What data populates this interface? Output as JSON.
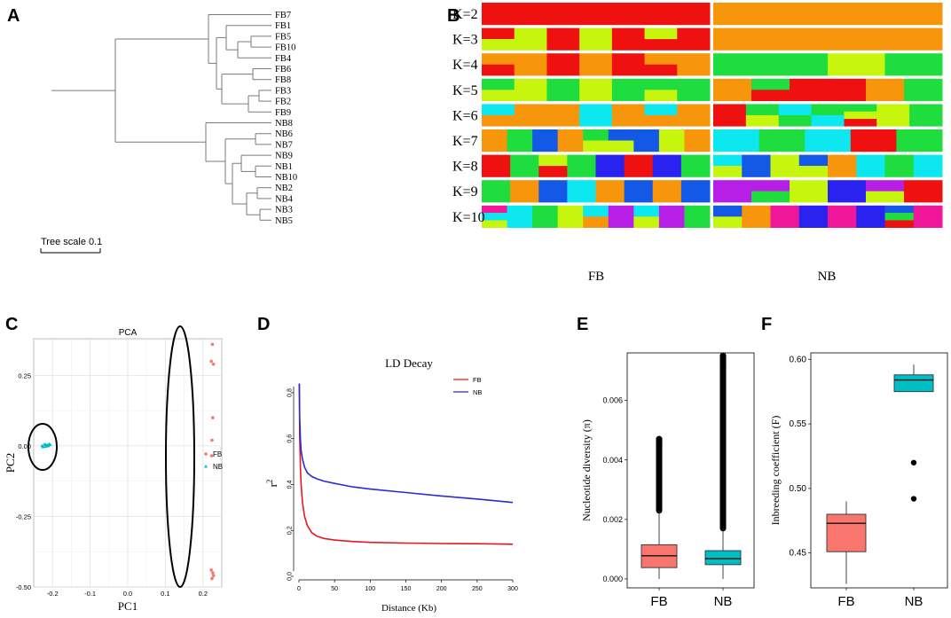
{
  "panels": {
    "A": {
      "letter": "A",
      "scale_label": "Tree scale 0.1",
      "leaves": [
        "FB7",
        "FB1",
        "FB5",
        "FB10",
        "FB4",
        "FB6",
        "FB8",
        "FB3",
        "FB2",
        "FB9",
        "NB8",
        "NB6",
        "NB7",
        "NB9",
        "NB1",
        "NB10",
        "NB2",
        "NB4",
        "NB3",
        "NB5"
      ]
    },
    "B": {
      "letter": "B",
      "k_labels": [
        "K=2",
        "K=3",
        "K=4",
        "K=5",
        "K=6",
        "K=7",
        "K=8",
        "K=9",
        "K=10"
      ],
      "group_labels": [
        "FB",
        "NB"
      ]
    },
    "C": {
      "letter": "C"
    },
    "D": {
      "letter": "D"
    },
    "E": {
      "letter": "E"
    },
    "F": {
      "letter": "F"
    }
  },
  "colors": {
    "red": "#ef1010",
    "orange": "#f7960a",
    "lime": "#c6f50e",
    "green": "#1fdc3f",
    "cyan": "#0de8f0",
    "blue": "#1459e6",
    "navy": "#2a22ee",
    "purple": "#b81fe6",
    "magenta": "#f0169a",
    "box_fb": "#f8766d",
    "box_nb": "#00bfc4",
    "ld_fb": "#e8171b",
    "ld_nb": "#2b2bd6"
  },
  "structure_rows": [
    {
      "fb": [
        [
          "red"
        ]
      ],
      "nb": [
        [
          "orange"
        ]
      ]
    },
    {
      "fb": [
        [
          "red",
          "lime"
        ],
        [
          "lime"
        ],
        [
          "red"
        ],
        [
          "lime"
        ],
        [
          "red"
        ],
        [
          "lime",
          "red"
        ],
        [
          "red"
        ]
      ],
      "nb": [
        [
          "orange"
        ]
      ]
    },
    {
      "fb": [
        [
          "orange",
          "red"
        ],
        [
          "orange"
        ],
        [
          "red"
        ],
        [
          "orange"
        ],
        [
          "red"
        ],
        [
          "orange",
          "red"
        ],
        [
          "orange"
        ]
      ],
      "nb": [
        [
          "green"
        ],
        [
          "green"
        ],
        [
          "lime"
        ],
        [
          "green"
        ]
      ]
    },
    {
      "fb": [
        [
          "green",
          "lime"
        ],
        [
          "lime"
        ],
        [
          "green"
        ],
        [
          "lime"
        ],
        [
          "green"
        ],
        [
          "green",
          "lime"
        ],
        [
          "green"
        ]
      ],
      "nb": [
        [
          "orange"
        ],
        [
          "green",
          "red"
        ],
        [
          "red"
        ],
        [
          "red"
        ],
        [
          "orange"
        ],
        [
          "green"
        ]
      ]
    },
    {
      "fb": [
        [
          "cyan",
          "orange"
        ],
        [
          "orange"
        ],
        [
          "orange"
        ],
        [
          "cyan"
        ],
        [
          "orange"
        ],
        [
          "cyan",
          "orange"
        ],
        [
          "orange"
        ]
      ],
      "nb": [
        [
          "red"
        ],
        [
          "green",
          "lime"
        ],
        [
          "cyan",
          "green"
        ],
        [
          "green",
          "cyan"
        ],
        [
          "green",
          "lime",
          "red"
        ],
        [
          "lime"
        ],
        [
          "green"
        ]
      ]
    },
    {
      "fb": [
        [
          "orange"
        ],
        [
          "green"
        ],
        [
          "blue"
        ],
        [
          "orange"
        ],
        [
          "green",
          "lime"
        ],
        [
          "blue",
          "lime"
        ],
        [
          "blue"
        ],
        [
          "lime"
        ],
        [
          "orange"
        ]
      ],
      "nb": [
        [
          "cyan"
        ],
        [
          "green"
        ],
        [
          "cyan"
        ],
        [
          "red"
        ],
        [
          "green"
        ]
      ]
    },
    {
      "fb": [
        [
          "red"
        ],
        [
          "green"
        ],
        [
          "lime",
          "red"
        ],
        [
          "green"
        ],
        [
          "navy"
        ],
        [
          "red"
        ],
        [
          "navy"
        ],
        [
          "green"
        ]
      ],
      "nb": [
        [
          "cyan",
          "lime"
        ],
        [
          "blue"
        ],
        [
          "lime"
        ],
        [
          "blue",
          "lime"
        ],
        [
          "orange"
        ],
        [
          "cyan"
        ],
        [
          "green"
        ],
        [
          "cyan"
        ]
      ]
    },
    {
      "fb": [
        [
          "green"
        ],
        [
          "orange"
        ],
        [
          "blue"
        ],
        [
          "cyan"
        ],
        [
          "orange"
        ],
        [
          "blue"
        ],
        [
          "orange"
        ],
        [
          "blue"
        ]
      ],
      "nb": [
        [
          "purple"
        ],
        [
          "purple",
          "green"
        ],
        [
          "lime"
        ],
        [
          "navy"
        ],
        [
          "purple",
          "lime"
        ],
        [
          "red"
        ]
      ]
    },
    {
      "fb": [
        [
          "magenta",
          "cyan",
          "lime"
        ],
        [
          "cyan"
        ],
        [
          "green"
        ],
        [
          "lime"
        ],
        [
          "cyan",
          "orange"
        ],
        [
          "purple"
        ],
        [
          "cyan",
          "lime"
        ],
        [
          "purple"
        ],
        [
          "green"
        ]
      ],
      "nb": [
        [
          "blue",
          "lime"
        ],
        [
          "orange"
        ],
        [
          "magenta"
        ],
        [
          "navy"
        ],
        [
          "magenta"
        ],
        [
          "navy"
        ],
        [
          "blue",
          "green",
          "red"
        ],
        [
          "magenta"
        ]
      ]
    }
  ],
  "chart_data": [
    {
      "panel": "C",
      "type": "scatter",
      "title": "PCA",
      "xlabel": "PC1",
      "ylabel": "PC2",
      "xlim": [
        -0.25,
        0.25
      ],
      "ylim": [
        -0.5,
        0.38
      ],
      "xticks": [
        "-0.2",
        "-0.1",
        "0.0",
        "0.1",
        "0.2"
      ],
      "yticks": [
        "-0.50",
        "-0.25",
        "0.00",
        "0.25"
      ],
      "legend": [
        "FB",
        "NB"
      ],
      "series": [
        {
          "name": "FB",
          "points": [
            [
              0.225,
              0.36
            ],
            [
              0.222,
              0.3
            ],
            [
              0.228,
              0.29
            ],
            [
              0.226,
              0.1
            ],
            [
              0.224,
              0.02
            ],
            [
              0.223,
              -0.035
            ],
            [
              0.222,
              -0.44
            ],
            [
              0.226,
              -0.45
            ],
            [
              0.228,
              -0.46
            ],
            [
              0.224,
              -0.47
            ]
          ]
        },
        {
          "name": "NB",
          "points": [
            [
              -0.228,
              0.0
            ],
            [
              -0.222,
              0.004
            ],
            [
              -0.218,
              -0.002
            ],
            [
              -0.214,
              0.003
            ],
            [
              -0.211,
              0.0
            ],
            [
              -0.209,
              0.006
            ],
            [
              -0.225,
              -0.004
            ],
            [
              -0.216,
              0.001
            ],
            [
              -0.206,
              0.004
            ],
            [
              -0.219,
              0.005
            ]
          ]
        }
      ]
    },
    {
      "panel": "D",
      "type": "line",
      "title": "LD Decay",
      "xlabel": "Distance (Kb)",
      "ylabel": "r",
      "ylabel_superscript": "2",
      "xlim": [
        0,
        300
      ],
      "ylim": [
        0,
        0.85
      ],
      "xticks": [
        "0",
        "50",
        "100",
        "150",
        "200",
        "250",
        "300"
      ],
      "yticks": [
        "0.0",
        "0.2",
        "0.4",
        "0.6",
        "0.8"
      ],
      "legend": [
        "FB",
        "NB"
      ],
      "series": [
        {
          "name": "FB",
          "x": [
            0.5,
            1,
            2,
            3,
            5,
            8,
            12,
            18,
            25,
            35,
            50,
            75,
            100,
            150,
            200,
            250,
            300
          ],
          "y": [
            0.84,
            0.62,
            0.48,
            0.4,
            0.32,
            0.26,
            0.22,
            0.19,
            0.175,
            0.165,
            0.158,
            0.152,
            0.148,
            0.145,
            0.143,
            0.142,
            0.14
          ]
        },
        {
          "name": "NB",
          "x": [
            0.5,
            1,
            2,
            3,
            5,
            8,
            12,
            18,
            25,
            35,
            50,
            75,
            100,
            150,
            200,
            250,
            300
          ],
          "y": [
            0.84,
            0.7,
            0.6,
            0.55,
            0.51,
            0.475,
            0.45,
            0.435,
            0.425,
            0.415,
            0.405,
            0.39,
            0.38,
            0.365,
            0.35,
            0.337,
            0.322
          ]
        }
      ]
    },
    {
      "panel": "E",
      "type": "boxplot",
      "ylabel": "Nucleotide diversity (π)",
      "categories": [
        "FB",
        "NB"
      ],
      "ylim": [
        -0.0003,
        0.0076
      ],
      "yticks": [
        "0.000",
        "0.002",
        "0.004",
        "0.006"
      ],
      "ytick_values": [
        0,
        0.002,
        0.004,
        0.006
      ],
      "boxes": [
        {
          "name": "FB",
          "q1": 0.00038,
          "median": 0.00078,
          "q3": 0.00115,
          "whisker_low": 0.0,
          "whisker_high": 0.0023,
          "outlier_range": [
            0.0023,
            0.0047
          ]
        },
        {
          "name": "NB",
          "q1": 0.00048,
          "median": 0.00068,
          "q3": 0.00095,
          "whisker_low": 0.0,
          "whisker_high": 0.0017,
          "outlier_range": [
            0.0017,
            0.0075
          ]
        }
      ]
    },
    {
      "panel": "F",
      "type": "boxplot",
      "ylabel": "Inbreeding coefficient (F)",
      "categories": [
        "FB",
        "NB"
      ],
      "ylim": [
        0.423,
        0.605
      ],
      "yticks": [
        "0.45",
        "0.50",
        "0.55",
        "0.60"
      ],
      "ytick_values": [
        0.45,
        0.5,
        0.55,
        0.6
      ],
      "boxes": [
        {
          "name": "FB",
          "q1": 0.451,
          "median": 0.473,
          "q3": 0.48,
          "whisker_low": 0.426,
          "whisker_high": 0.49,
          "outliers": []
        },
        {
          "name": "NB",
          "q1": 0.575,
          "median": 0.584,
          "q3": 0.588,
          "whisker_low": 0.575,
          "whisker_high": 0.596,
          "outliers": [
            0.52,
            0.492
          ]
        }
      ]
    }
  ]
}
